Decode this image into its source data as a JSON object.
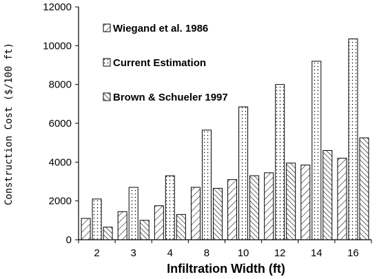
{
  "chart_data": {
    "type": "bar",
    "xlabel": "Infiltration Width (ft)",
    "ylabel": "Construction Cost ($/100 ft)",
    "categories": [
      "2",
      "3",
      "4",
      "8",
      "10",
      "12",
      "14",
      "16"
    ],
    "ylim": [
      0,
      12000
    ],
    "yticks": [
      0,
      2000,
      4000,
      6000,
      8000,
      10000,
      12000
    ],
    "grid": false,
    "legend_position": "top-left",
    "series": [
      {
        "name": "Wiegand et al. 1986",
        "pattern": "forward-diagonal-hatch",
        "values": [
          1100,
          1450,
          1750,
          2700,
          3100,
          3450,
          3850,
          4200
        ]
      },
      {
        "name": "Current Estimation",
        "pattern": "dots",
        "values": [
          2100,
          2700,
          3300,
          5650,
          6850,
          8000,
          9200,
          10350
        ]
      },
      {
        "name": "Brown & Schueler 1997",
        "pattern": "back-diagonal-hatch",
        "values": [
          650,
          1000,
          1300,
          2650,
          3300,
          3950,
          4600,
          5250
        ]
      }
    ]
  }
}
